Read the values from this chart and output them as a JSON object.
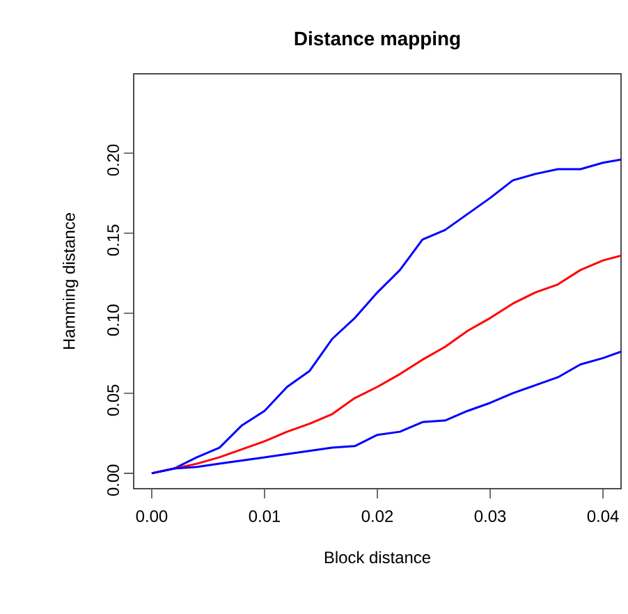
{
  "chart_data": {
    "type": "line",
    "title": "Distance mapping",
    "xlabel": "Block distance",
    "ylabel": "Hamming distance",
    "x": [
      0,
      0.002,
      0.004,
      0.006,
      0.008,
      0.01,
      0.012,
      0.014,
      0.016,
      0.018,
      0.02,
      0.022,
      0.024,
      0.026,
      0.028,
      0.03,
      0.032,
      0.034,
      0.036,
      0.038,
      0.04,
      0.0416
    ],
    "series": [
      {
        "color": "#0000ff",
        "values": [
          0,
          0.003,
          0.01,
          0.016,
          0.03,
          0.039,
          0.054,
          0.064,
          0.084,
          0.097,
          0.113,
          0.127,
          0.146,
          0.152,
          0.162,
          0.172,
          0.183,
          0.187,
          0.19,
          0.19,
          0.194,
          0.196
        ]
      },
      {
        "color": "#ff0000",
        "values": [
          0,
          0.003,
          0.006,
          0.01,
          0.015,
          0.02,
          0.026,
          0.031,
          0.037,
          0.047,
          0.054,
          0.062,
          0.071,
          0.079,
          0.089,
          0.097,
          0.106,
          0.113,
          0.118,
          0.127,
          0.133,
          0.136
        ]
      },
      {
        "color": "#0000ff",
        "values": [
          0,
          0.003,
          0.004,
          0.006,
          0.008,
          0.01,
          0.012,
          0.014,
          0.016,
          0.017,
          0.024,
          0.026,
          0.032,
          0.033,
          0.039,
          0.044,
          0.05,
          0.055,
          0.06,
          0.068,
          0.072,
          0.076
        ]
      }
    ],
    "xlim": [
      -0.0016,
      0.0416
    ],
    "ylim": [
      -0.0096,
      0.2496
    ],
    "xticks": [
      {
        "value": 0,
        "label": "0.00"
      },
      {
        "value": 0.01,
        "label": "0.01"
      },
      {
        "value": 0.02,
        "label": "0.02"
      },
      {
        "value": 0.03,
        "label": "0.03"
      },
      {
        "value": 0.04,
        "label": "0.04"
      }
    ],
    "yticks": [
      {
        "value": 0,
        "label": "0.00"
      },
      {
        "value": 0.05,
        "label": "0.05"
      },
      {
        "value": 0.1,
        "label": "0.10"
      },
      {
        "value": 0.15,
        "label": "0.15"
      },
      {
        "value": 0.2,
        "label": "0.20"
      }
    ],
    "grid": false,
    "marker": "none",
    "line_style": "solid"
  }
}
